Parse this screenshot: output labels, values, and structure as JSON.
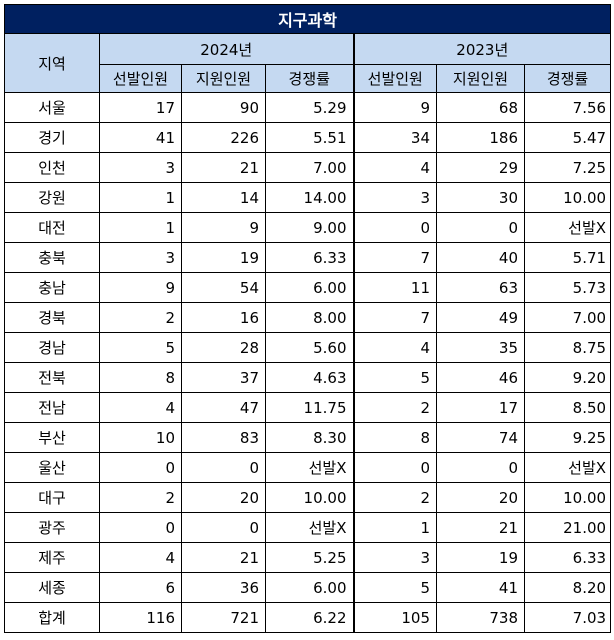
{
  "title": "지구과학",
  "header": {
    "region": "지역",
    "year_a": "2024년",
    "year_b": "2023년",
    "cols": [
      "선발인원",
      "지원인원",
      "경쟁률"
    ]
  },
  "rows": [
    {
      "region": "서울",
      "a": [
        "17",
        "90",
        "5.29"
      ],
      "b": [
        "9",
        "68",
        "7.56"
      ]
    },
    {
      "region": "경기",
      "a": [
        "41",
        "226",
        "5.51"
      ],
      "b": [
        "34",
        "186",
        "5.47"
      ]
    },
    {
      "region": "인천",
      "a": [
        "3",
        "21",
        "7.00"
      ],
      "b": [
        "4",
        "29",
        "7.25"
      ]
    },
    {
      "region": "강원",
      "a": [
        "1",
        "14",
        "14.00"
      ],
      "b": [
        "3",
        "30",
        "10.00"
      ]
    },
    {
      "region": "대전",
      "a": [
        "1",
        "9",
        "9.00"
      ],
      "b": [
        "0",
        "0",
        "선발X"
      ]
    },
    {
      "region": "충북",
      "a": [
        "3",
        "19",
        "6.33"
      ],
      "b": [
        "7",
        "40",
        "5.71"
      ]
    },
    {
      "region": "충남",
      "a": [
        "9",
        "54",
        "6.00"
      ],
      "b": [
        "11",
        "63",
        "5.73"
      ]
    },
    {
      "region": "경북",
      "a": [
        "2",
        "16",
        "8.00"
      ],
      "b": [
        "7",
        "49",
        "7.00"
      ]
    },
    {
      "region": "경남",
      "a": [
        "5",
        "28",
        "5.60"
      ],
      "b": [
        "4",
        "35",
        "8.75"
      ]
    },
    {
      "region": "전북",
      "a": [
        "8",
        "37",
        "4.63"
      ],
      "b": [
        "5",
        "46",
        "9.20"
      ]
    },
    {
      "region": "전남",
      "a": [
        "4",
        "47",
        "11.75"
      ],
      "b": [
        "2",
        "17",
        "8.50"
      ]
    },
    {
      "region": "부산",
      "a": [
        "10",
        "83",
        "8.30"
      ],
      "b": [
        "8",
        "74",
        "9.25"
      ]
    },
    {
      "region": "울산",
      "a": [
        "0",
        "0",
        "선발X"
      ],
      "b": [
        "0",
        "0",
        "선발X"
      ]
    },
    {
      "region": "대구",
      "a": [
        "2",
        "20",
        "10.00"
      ],
      "b": [
        "2",
        "20",
        "10.00"
      ]
    },
    {
      "region": "광주",
      "a": [
        "0",
        "0",
        "선발X"
      ],
      "b": [
        "1",
        "21",
        "21.00"
      ]
    },
    {
      "region": "제주",
      "a": [
        "4",
        "21",
        "5.25"
      ],
      "b": [
        "3",
        "19",
        "6.33"
      ]
    },
    {
      "region": "세종",
      "a": [
        "6",
        "36",
        "6.00"
      ],
      "b": [
        "5",
        "41",
        "8.20"
      ]
    },
    {
      "region": "합계",
      "a": [
        "116",
        "721",
        "6.22"
      ],
      "b": [
        "105",
        "738",
        "7.03"
      ]
    }
  ]
}
